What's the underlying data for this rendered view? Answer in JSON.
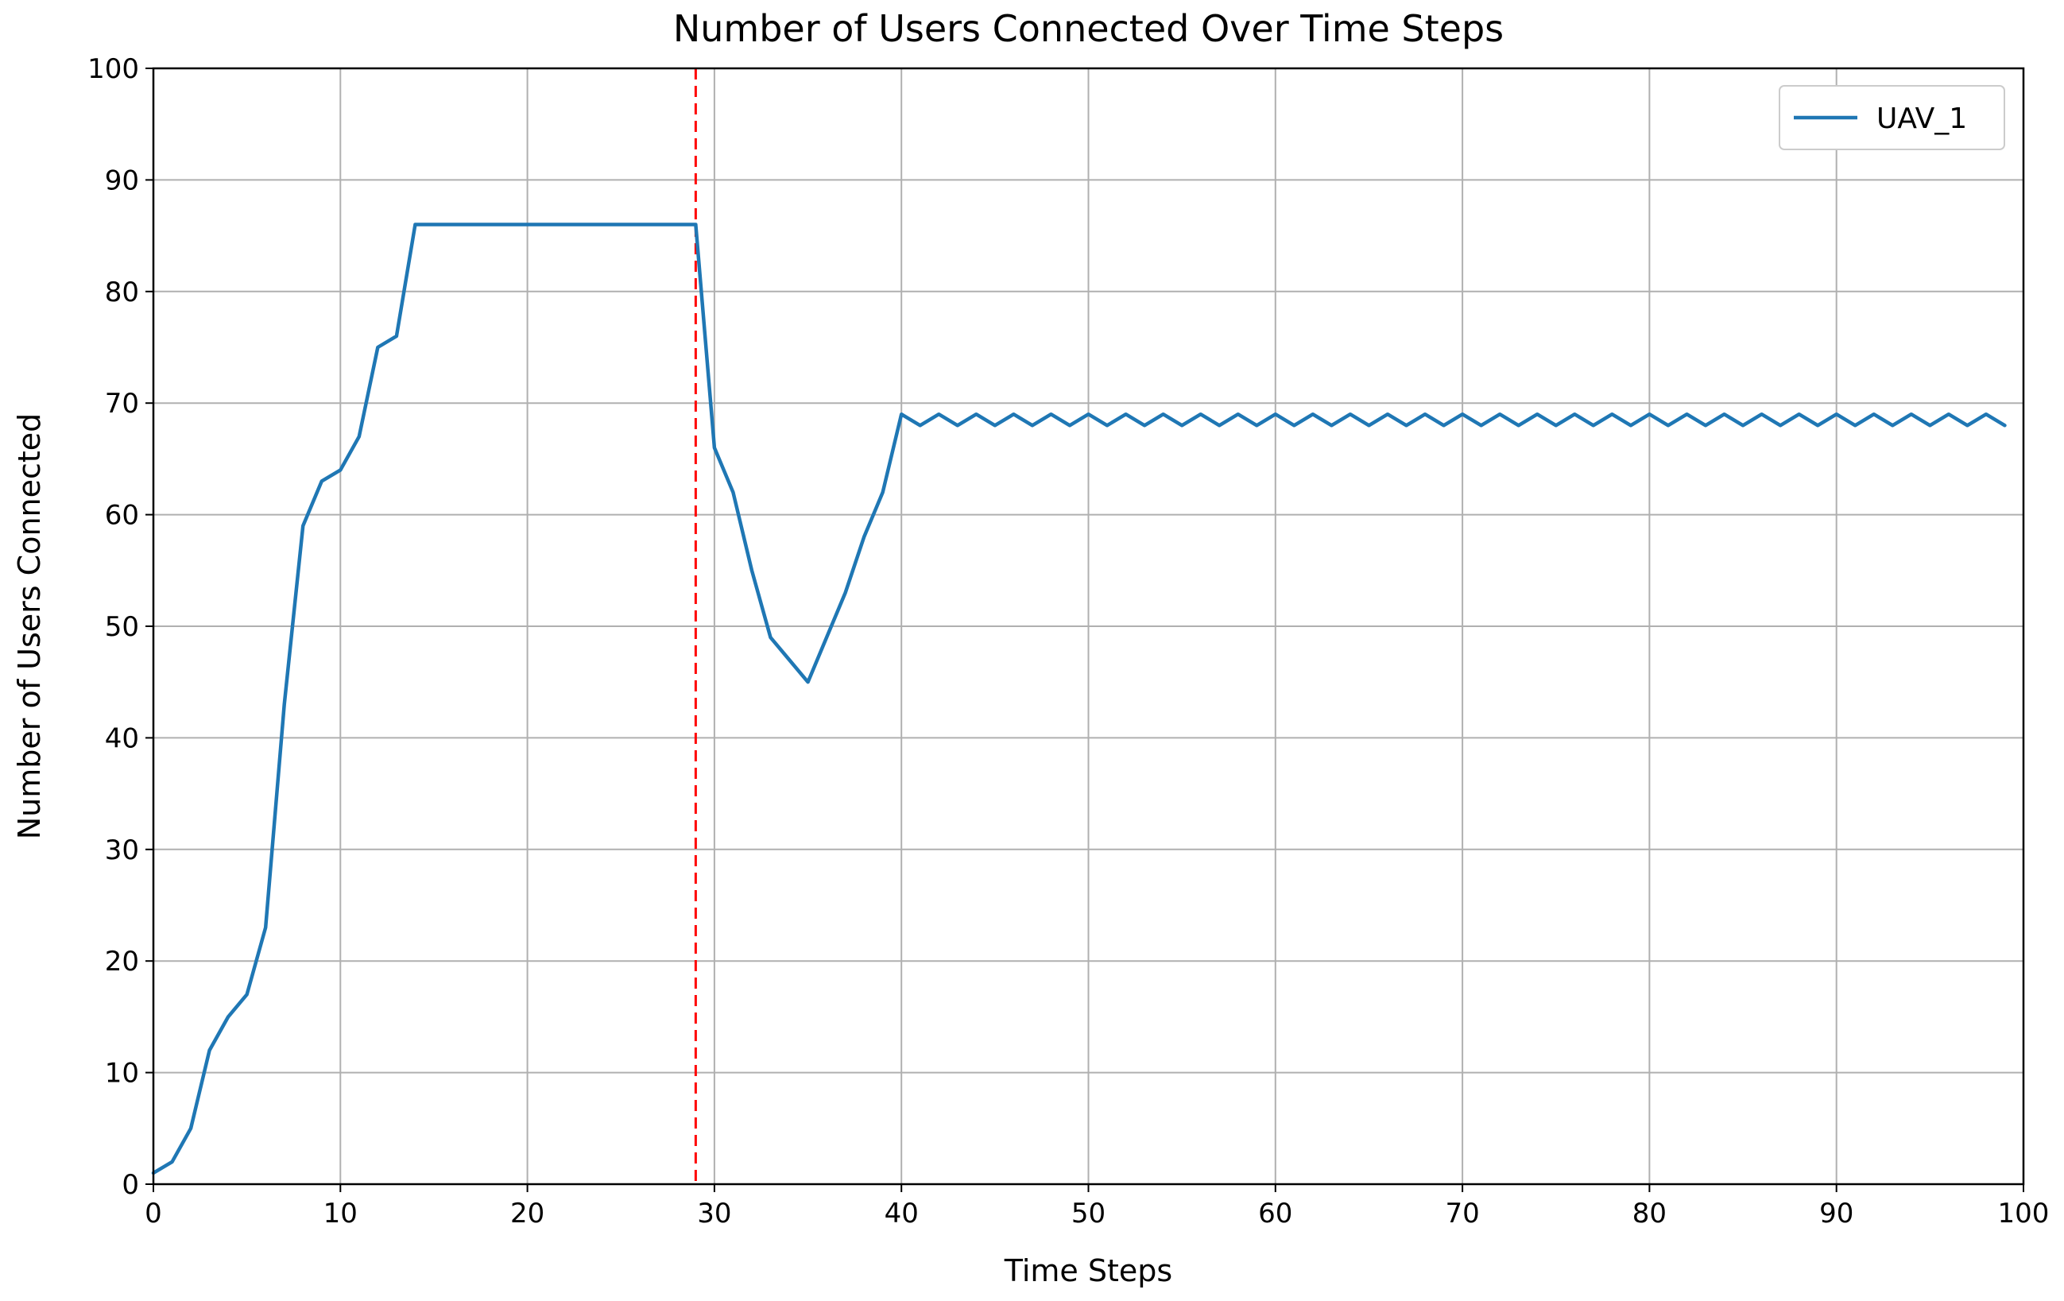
{
  "chart_data": {
    "type": "line",
    "title": "Number of Users Connected Over Time Steps",
    "xlabel": "Time Steps",
    "ylabel": "Number of Users Connected",
    "xlim": [
      0,
      100
    ],
    "ylim": [
      0,
      100
    ],
    "xticks": [
      0,
      10,
      20,
      30,
      40,
      50,
      60,
      70,
      80,
      90,
      100
    ],
    "yticks": [
      0,
      10,
      20,
      30,
      40,
      50,
      60,
      70,
      80,
      90,
      100
    ],
    "grid": true,
    "legend_position": "top-right",
    "vline": {
      "x": 29,
      "color": "#ff0000",
      "style": "dashed"
    },
    "series": [
      {
        "name": "UAV_1",
        "color": "#1f77b4",
        "x": [
          0,
          1,
          2,
          3,
          4,
          5,
          6,
          7,
          8,
          9,
          10,
          11,
          12,
          13,
          14,
          15,
          16,
          17,
          18,
          19,
          20,
          21,
          22,
          23,
          24,
          25,
          26,
          27,
          28,
          29,
          30,
          31,
          32,
          33,
          34,
          35,
          36,
          37,
          38,
          39,
          40,
          41,
          42,
          43,
          44,
          45,
          46,
          47,
          48,
          49,
          50,
          51,
          52,
          53,
          54,
          55,
          56,
          57,
          58,
          59,
          60,
          61,
          62,
          63,
          64,
          65,
          66,
          67,
          68,
          69,
          70,
          71,
          72,
          73,
          74,
          75,
          76,
          77,
          78,
          79,
          80,
          81,
          82,
          83,
          84,
          85,
          86,
          87,
          88,
          89,
          90,
          91,
          92,
          93,
          94,
          95,
          96,
          97,
          98,
          99
        ],
        "y": [
          1,
          2,
          5,
          12,
          15,
          17,
          23,
          43,
          59,
          63,
          64,
          67,
          75,
          76,
          86,
          86,
          86,
          86,
          86,
          86,
          86,
          86,
          86,
          86,
          86,
          86,
          86,
          86,
          86,
          86,
          66,
          62,
          55,
          49,
          47,
          45,
          49,
          53,
          58,
          62,
          69,
          68,
          69,
          68,
          69,
          68,
          69,
          68,
          69,
          68,
          69,
          68,
          69,
          68,
          69,
          68,
          69,
          68,
          69,
          68,
          69,
          68,
          69,
          68,
          69,
          68,
          69,
          68,
          69,
          68,
          69,
          68,
          69,
          68,
          69,
          68,
          69,
          68,
          69,
          68,
          69,
          68,
          69,
          68,
          69,
          68,
          69,
          68,
          69,
          68,
          69,
          68,
          69,
          68,
          69,
          68,
          69,
          68,
          69,
          68
        ]
      }
    ]
  }
}
